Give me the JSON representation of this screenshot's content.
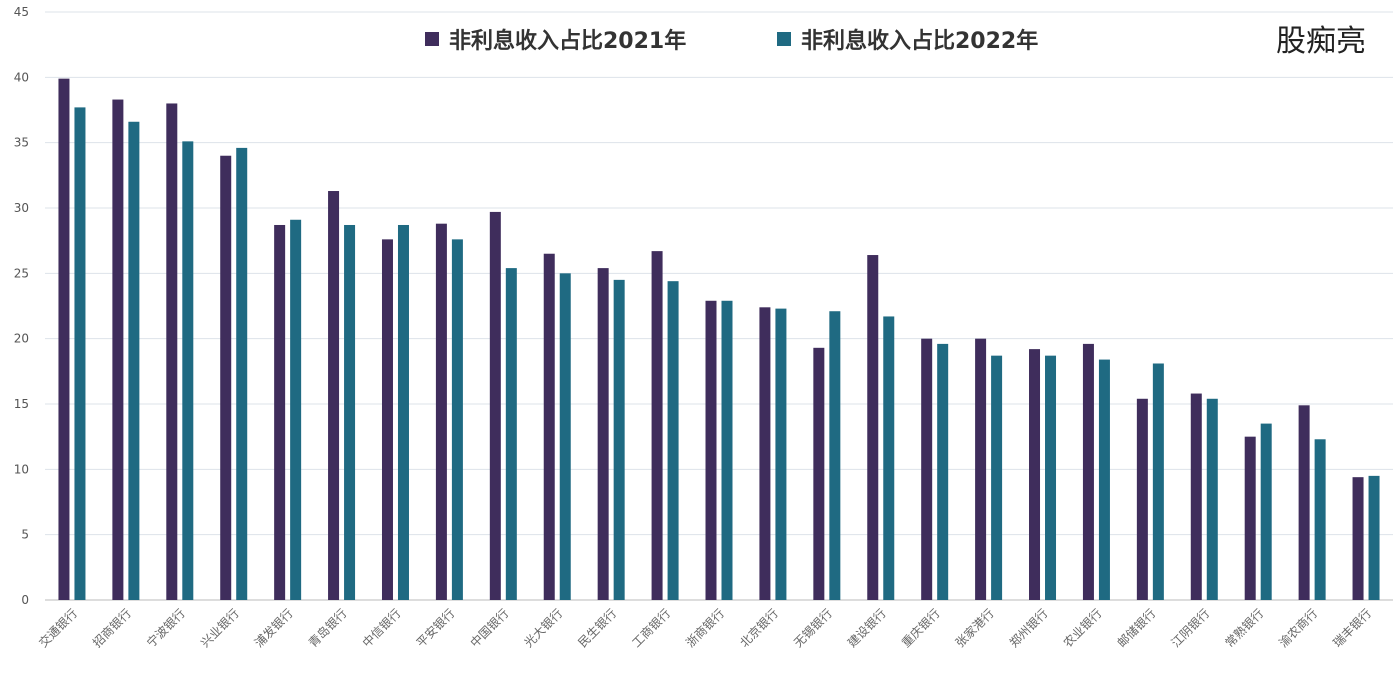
{
  "chart_data": {
    "type": "bar",
    "title": "",
    "xlabel": "",
    "ylabel": "",
    "ylim": [
      0,
      45
    ],
    "yticks": [
      0,
      5,
      10,
      15,
      20,
      25,
      30,
      35,
      40,
      45
    ],
    "grid": true,
    "legend_position": "top-center",
    "categories": [
      "交通银行",
      "招商银行",
      "宁波银行",
      "兴业银行",
      "浦发银行",
      "青岛银行",
      "中信银行",
      "平安银行",
      "中国银行",
      "光大银行",
      "民生银行",
      "工商银行",
      "浙商银行",
      "北京银行",
      "无锡银行",
      "建设银行",
      "重庆银行",
      "张家港行",
      "郑州银行",
      "农业银行",
      "邮储银行",
      "江阴银行",
      "常熟银行",
      "渝农商行",
      "瑞丰银行"
    ],
    "series": [
      {
        "name": "非利息收入占比2021年",
        "color": "#3f2d5c",
        "values": [
          39.9,
          38.3,
          38.0,
          34.0,
          28.7,
          31.3,
          27.6,
          28.8,
          29.7,
          26.5,
          25.4,
          26.7,
          22.9,
          22.4,
          19.3,
          26.4,
          20.0,
          20.0,
          19.2,
          19.6,
          15.4,
          15.8,
          12.5,
          14.9,
          9.4
        ]
      },
      {
        "name": "非利息收入占比2022年",
        "color": "#1f6a82",
        "values": [
          37.7,
          36.6,
          35.1,
          34.6,
          29.1,
          28.7,
          28.7,
          27.6,
          25.4,
          25.0,
          24.5,
          24.4,
          22.9,
          22.3,
          22.1,
          21.7,
          19.6,
          18.7,
          18.7,
          18.4,
          18.1,
          15.4,
          13.5,
          12.3,
          9.5
        ]
      }
    ]
  },
  "watermark": "股痴亮"
}
